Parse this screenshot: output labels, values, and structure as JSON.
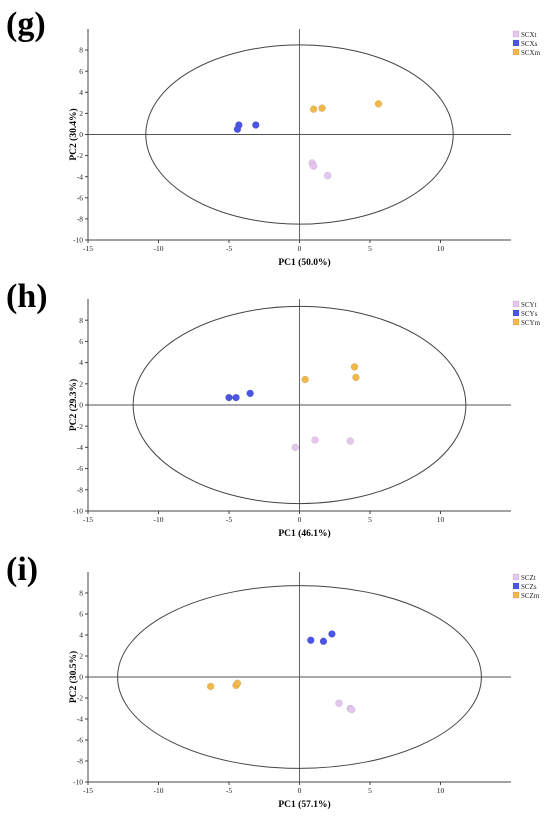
{
  "chart_data": [
    {
      "type": "scatter",
      "panel_label": "(g)",
      "xlabel": "PC1 (50.0%)",
      "ylabel": "PC2 (30.4%)",
      "xlim": [
        -15,
        15
      ],
      "ylim": [
        -10,
        10
      ],
      "xticks": [
        -15,
        -10,
        -5,
        0,
        5,
        10
      ],
      "yticks": [
        -10,
        -8,
        -6,
        -4,
        -2,
        0,
        2,
        4,
        6,
        8
      ],
      "grid": false,
      "legend_position": "top-right",
      "ellipse": {
        "cx": 0,
        "cy": 0,
        "rx": 10.9,
        "ry": 8.5
      },
      "series": [
        {
          "name": "SCXt",
          "color": "#e6c6ef",
          "points": [
            [
              0.9,
              -2.7
            ],
            [
              1.0,
              -3.0
            ],
            [
              2.0,
              -3.9
            ]
          ]
        },
        {
          "name": "SCXs",
          "color": "#4a55e6",
          "points": [
            [
              -4.3,
              0.9
            ],
            [
              -4.4,
              0.5
            ],
            [
              -3.1,
              0.9
            ]
          ]
        },
        {
          "name": "SCXm",
          "color": "#f2b84b",
          "points": [
            [
              1.0,
              2.4
            ],
            [
              1.6,
              2.5
            ],
            [
              5.6,
              2.9
            ]
          ]
        }
      ]
    },
    {
      "type": "scatter",
      "panel_label": "(h)",
      "xlabel": "PC1 (46.1%)",
      "ylabel": "PC2 (29.3%)",
      "xlim": [
        -15,
        15
      ],
      "ylim": [
        -10,
        10
      ],
      "xticks": [
        -15,
        -10,
        -5,
        0,
        5,
        10
      ],
      "yticks": [
        -10,
        -8,
        -6,
        -4,
        -2,
        0,
        2,
        4,
        6,
        8
      ],
      "grid": false,
      "legend_position": "top-right",
      "ellipse": {
        "cx": 0,
        "cy": 0,
        "rx": 11.8,
        "ry": 9.3
      },
      "series": [
        {
          "name": "SCYt",
          "color": "#e6c6ef",
          "points": [
            [
              -0.3,
              -4.0
            ],
            [
              1.1,
              -3.3
            ],
            [
              3.6,
              -3.4
            ]
          ]
        },
        {
          "name": "SCYs",
          "color": "#4a55e6",
          "points": [
            [
              -5.0,
              0.7
            ],
            [
              -4.5,
              0.7
            ],
            [
              -3.5,
              1.1
            ]
          ]
        },
        {
          "name": "SCYm",
          "color": "#f2b84b",
          "points": [
            [
              0.4,
              2.4
            ],
            [
              3.9,
              3.6
            ],
            [
              4.0,
              2.6
            ]
          ]
        }
      ]
    },
    {
      "type": "scatter",
      "panel_label": "(i)",
      "xlabel": "PC1 (57.1%)",
      "ylabel": "PC2 (30.5%)",
      "xlim": [
        -15,
        15
      ],
      "ylim": [
        -10,
        10
      ],
      "xticks": [
        -15,
        -10,
        -5,
        0,
        5,
        10
      ],
      "yticks": [
        -10,
        -8,
        -6,
        -4,
        -2,
        0,
        2,
        4,
        6,
        8
      ],
      "grid": false,
      "legend_position": "top-right",
      "ellipse": {
        "cx": 0,
        "cy": 0,
        "rx": 12.9,
        "ry": 8.7
      },
      "series": [
        {
          "name": "SCZt",
          "color": "#e6c6ef",
          "points": [
            [
              2.8,
              -2.5
            ],
            [
              3.6,
              -3.0
            ],
            [
              3.7,
              -3.1
            ]
          ]
        },
        {
          "name": "SCZs",
          "color": "#4a55e6",
          "points": [
            [
              0.8,
              3.5
            ],
            [
              1.7,
              3.4
            ],
            [
              2.3,
              4.1
            ]
          ]
        },
        {
          "name": "SCZm",
          "color": "#f2b84b",
          "points": [
            [
              -6.3,
              -0.9
            ],
            [
              -4.5,
              -0.8
            ],
            [
              -4.4,
              -0.6
            ]
          ]
        }
      ]
    }
  ]
}
